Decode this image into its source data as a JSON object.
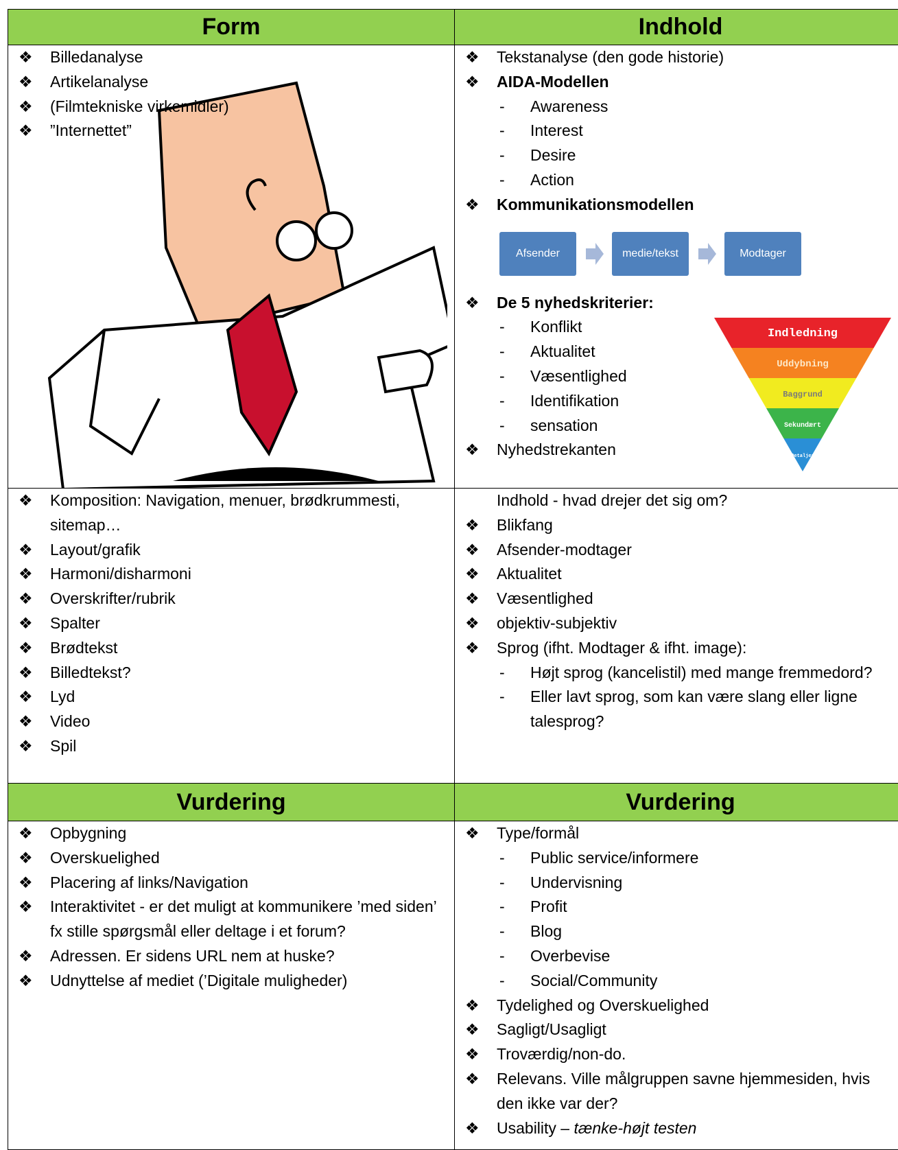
{
  "table": {
    "header_1": [
      "Form",
      "Indhold"
    ],
    "row_1": {
      "left": [
        {
          "text": "Billedanalyse"
        },
        {
          "text": "Artikelanalyse"
        },
        {
          "text": "(Filmtekniske virkemidler)"
        },
        {
          "text": "”Internettet”"
        }
      ],
      "right": [
        {
          "text": "Tekstanalyse (den gode historie)"
        },
        {
          "text": "AIDA-Modellen",
          "bold": true,
          "sub": [
            "Awareness",
            "Interest",
            "Desire",
            "Action"
          ]
        },
        {
          "text": "Kommunikationsmodellen",
          "bold": true,
          "diagram": [
            "Afsender",
            "medie/tekst",
            "Modtager"
          ]
        },
        {
          "text": "De 5 nyhedskriterier:",
          "bold": true,
          "sub": [
            "Konflikt",
            "Aktualitet",
            "Væsentlighed",
            "Identifikation",
            "sensation"
          ]
        },
        {
          "text": "Nyhedstrekanten"
        }
      ],
      "pyramid": [
        "Indledning",
        "Uddybning",
        "Baggrund",
        "Sekundært",
        "Detaljer"
      ]
    },
    "row_2": {
      "left": [
        {
          "text": "Komposition: Navigation, menuer, brødkrummesti, sitemap…"
        },
        {
          "text": "Layout/grafik"
        },
        {
          "text": "Harmoni/disharmoni"
        },
        {
          "text": "Overskrifter/rubrik"
        },
        {
          "text": "Spalter"
        },
        {
          "text": "Brødtekst"
        },
        {
          "text": "Billedtekst?"
        },
        {
          "text": "Lyd"
        },
        {
          "text": "Video"
        },
        {
          "text": "Spil"
        }
      ],
      "right": [
        {
          "text": "Indhold - hvad drejer det sig om?",
          "bullet": false
        },
        {
          "text": "Blikfang"
        },
        {
          "text": "Afsender-modtager"
        },
        {
          "text": "Aktualitet"
        },
        {
          "text": "Væsentlighed"
        },
        {
          "text": "objektiv-subjektiv"
        },
        {
          "text": "Sprog (ifht. Modtager & ifht. image):",
          "sub": [
            "Højt sprog (kancelistil) med mange fremmedord?",
            "Eller lavt sprog, som kan være slang eller ligne talesprog?"
          ]
        }
      ]
    },
    "header_2": [
      "Vurdering",
      "Vurdering"
    ],
    "row_3": {
      "left": [
        {
          "text": "Opbygning"
        },
        {
          "text": "Overskuelighed"
        },
        {
          "text": "Placering af links/Navigation"
        },
        {
          "text": "Interaktivitet - er det muligt at kommunikere ’med siden’ fx stille spørgsmål eller deltage i et forum?"
        },
        {
          "text": "Adressen. Er sidens URL nem at huske?"
        },
        {
          "text": "Udnyttelse af mediet (’Digitale muligheder)"
        }
      ],
      "right": [
        {
          "text": "Type/formål",
          "sub": [
            "Public service/informere",
            "Undervisning",
            "Profit",
            "Blog",
            "Overbevise",
            "Social/Community"
          ]
        },
        {
          "text": "Tydelighed og Overskuelighed"
        },
        {
          "text": "Sagligt/Usagligt"
        },
        {
          "text": "Troværdig/non-do."
        },
        {
          "text": "Relevans. Ville målgruppen savne hjemmesiden, hvis den ikke var der?"
        },
        {
          "text": "Usability –",
          "em": "tænke-højt testen"
        }
      ]
    }
  }
}
